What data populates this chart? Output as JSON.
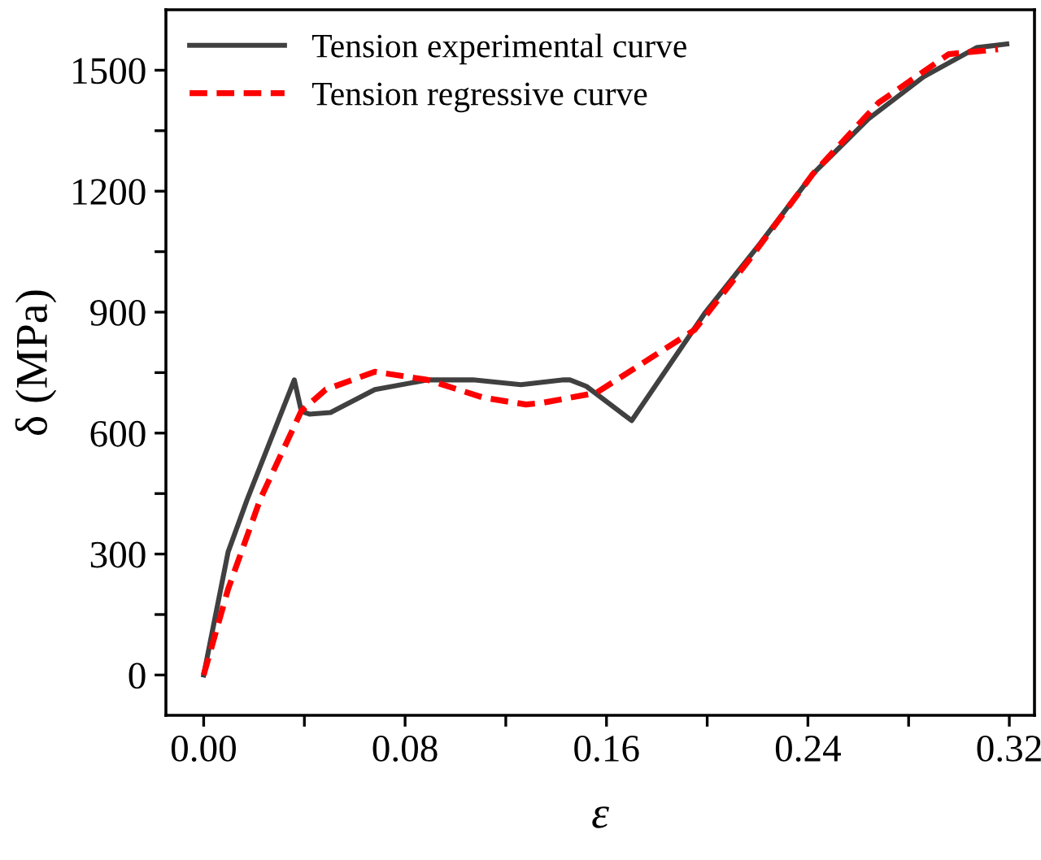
{
  "chart_data": {
    "type": "line",
    "xlabel": "ε",
    "ylabel": "δ (MPa)",
    "xlim": [
      -0.015,
      0.33
    ],
    "ylim": [
      -100,
      1650
    ],
    "xticks": [
      {
        "value": 0,
        "label": "0.00"
      },
      {
        "value": 0.04,
        "label": null
      },
      {
        "value": 0.08,
        "label": "0.08"
      },
      {
        "value": 0.12,
        "label": null
      },
      {
        "value": 0.16,
        "label": "0.16"
      },
      {
        "value": 0.2,
        "label": null
      },
      {
        "value": 0.24,
        "label": "0.24"
      },
      {
        "value": 0.28,
        "label": null
      },
      {
        "value": 0.32,
        "label": "0.32"
      }
    ],
    "yticks": [
      0,
      {
        "value": 150,
        "label": null
      },
      300,
      {
        "value": 450,
        "label": null
      },
      600,
      {
        "value": 750,
        "label": null
      },
      900,
      {
        "value": 1050,
        "label": null
      },
      1200,
      {
        "value": 1350,
        "label": null
      },
      1500
    ],
    "grid": false,
    "legend": "top left",
    "marker": "none",
    "series": [
      {
        "name": "Tension experimental curve",
        "color": "#404040",
        "line_style": "solid",
        "x": [
          0,
          0.0097,
          0.0172,
          0.036,
          0.0388,
          0.042,
          0.0504,
          0.068,
          0.089,
          0.107,
          0.126,
          0.143,
          0.1455,
          0.152,
          0.17,
          0.199,
          0.221,
          0.242,
          0.264,
          0.286,
          0.307,
          0.319
        ],
        "values": [
          0,
          305,
          434,
          732,
          654,
          647,
          651,
          708,
          732,
          732,
          720,
          732,
          732,
          716,
          631,
          897,
          1070,
          1243,
          1379,
          1484,
          1556,
          1565
        ]
      },
      {
        "name": "Tension regressive curve",
        "color": "#ff0000",
        "line_style": "dashed",
        "x": [
          0,
          0.0097,
          0.0226,
          0.0388,
          0.0485,
          0.068,
          0.089,
          0.111,
          0.128,
          0.1345,
          0.156,
          0.178,
          0.195,
          0.2166,
          0.242,
          0.268,
          0.296,
          0.3155
        ],
        "values": [
          0,
          213,
          438,
          655,
          708,
          752,
          732,
          688,
          671,
          675,
          700,
          788,
          856,
          1029,
          1243,
          1419,
          1540,
          1552
        ]
      }
    ]
  }
}
